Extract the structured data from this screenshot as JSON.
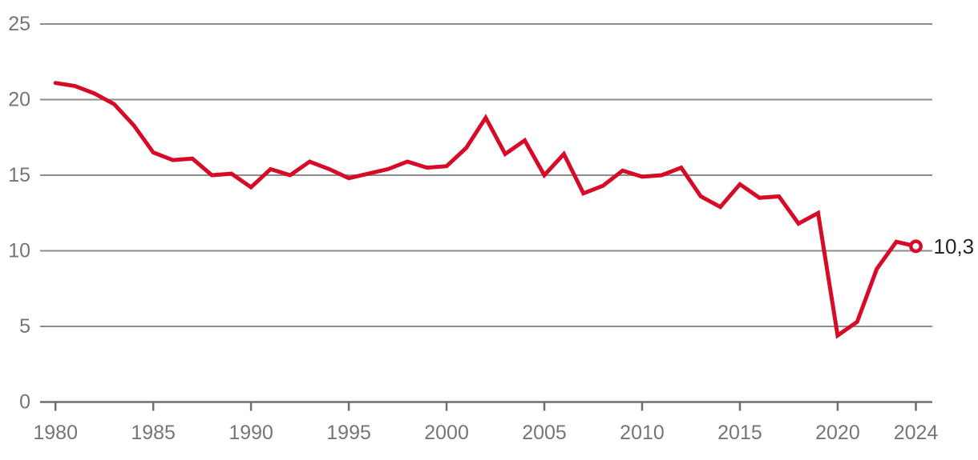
{
  "chart_data": {
    "type": "line",
    "title": "",
    "xlabel": "",
    "ylabel": "",
    "x": [
      1980,
      1981,
      1982,
      1983,
      1984,
      1985,
      1986,
      1987,
      1988,
      1989,
      1990,
      1991,
      1992,
      1993,
      1994,
      1995,
      1996,
      1997,
      1998,
      1999,
      2000,
      2001,
      2002,
      2003,
      2004,
      2005,
      2006,
      2007,
      2008,
      2009,
      2010,
      2011,
      2012,
      2013,
      2014,
      2015,
      2016,
      2017,
      2018,
      2019,
      2020,
      2021,
      2022,
      2023,
      2024
    ],
    "values": [
      21.1,
      20.9,
      20.4,
      19.7,
      18.3,
      16.5,
      16.0,
      16.1,
      15.0,
      15.1,
      14.2,
      15.4,
      15.0,
      15.9,
      15.4,
      14.8,
      15.1,
      15.4,
      15.9,
      15.5,
      15.6,
      16.8,
      18.8,
      16.4,
      17.3,
      15.0,
      16.4,
      13.8,
      14.3,
      15.3,
      14.9,
      15.0,
      15.5,
      13.6,
      12.9,
      14.4,
      13.5,
      13.6,
      11.8,
      12.5,
      4.4,
      5.3,
      8.8,
      10.6,
      10.3
    ],
    "xlim": [
      1980,
      2024
    ],
    "ylim": [
      0,
      25
    ],
    "ytick_values": [
      0,
      5,
      10,
      15,
      20,
      25
    ],
    "ytick_labels": [
      "0",
      "5",
      "10",
      "15",
      "20",
      "25"
    ],
    "xtick_values": [
      1980,
      1985,
      1990,
      1995,
      2000,
      2005,
      2010,
      2015,
      2020,
      2024
    ],
    "xtick_labels": [
      "1980",
      "1985",
      "1990",
      "1995",
      "2000",
      "2005",
      "2010",
      "2015",
      "2020",
      "2024"
    ],
    "grid": "horizontal",
    "legend": "none",
    "end_point": {
      "year": 2024,
      "value": 10.3,
      "label": "10,3",
      "marker": "open-circle"
    }
  },
  "colors": {
    "line": "#d60b28",
    "grid": "#8c8c8c",
    "axis": "#6f6f6f",
    "tick_text": "#767676",
    "end_label_text": "#262626",
    "marker_fill": "#ffffff",
    "background": "#ffffff"
  }
}
